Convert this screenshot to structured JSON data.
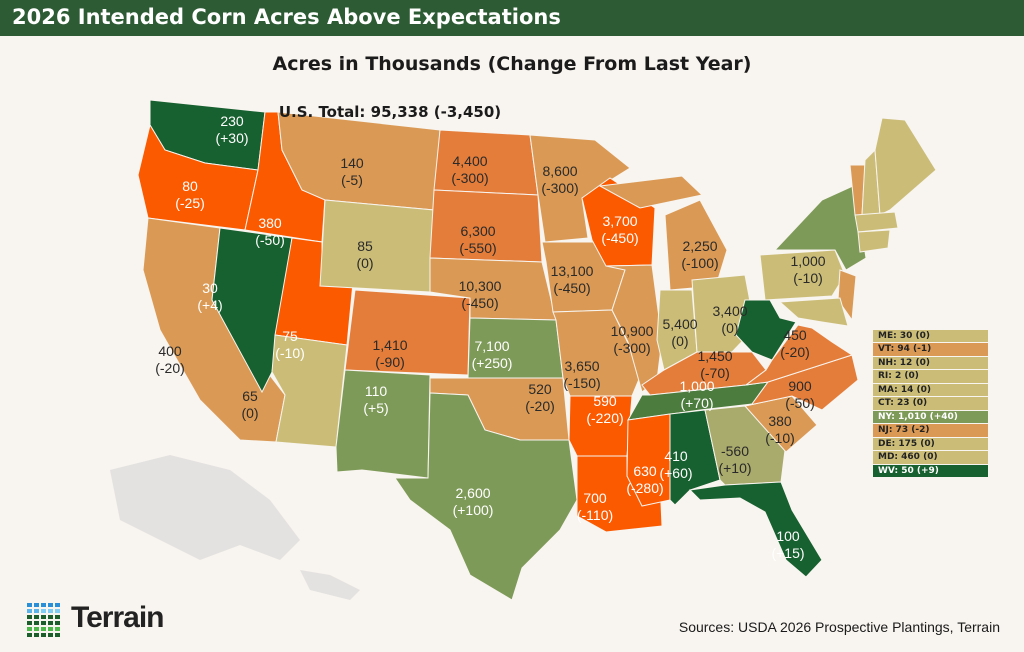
{
  "header": {
    "title": "2026 Intended Corn Acres Above Expectations"
  },
  "subtitle": "Acres in Thousands (Change From Last Year)",
  "total": "U.S. Total: 95,338 (-3,450)",
  "colors": {
    "title_bar": "#2d5b34",
    "dark_green": "#17602f",
    "medium_green": "#4c7d3e",
    "green": "#7e9a58",
    "olive": "#a9ab6c",
    "tan": "#cbbd78",
    "light_orange": "#da9a55",
    "orange": "#e57d3a",
    "red_orange": "#fb5a00",
    "background": "#f8f4ef"
  },
  "states": [
    {
      "id": "WA",
      "value": "230",
      "change": "(+30)",
      "color": "dark_green"
    },
    {
      "id": "OR",
      "value": "80",
      "change": "(-25)",
      "color": "red_orange"
    },
    {
      "id": "ID",
      "value": "380",
      "change": "(-50)",
      "color": "red_orange"
    },
    {
      "id": "MT",
      "value": "140",
      "change": "(-5)",
      "color": "light_orange"
    },
    {
      "id": "ND",
      "value": "4,400",
      "change": "(-300)",
      "color": "orange"
    },
    {
      "id": "SD",
      "value": "6,300",
      "change": "(-550)",
      "color": "orange"
    },
    {
      "id": "MN",
      "value": "8,600",
      "change": "(-300)",
      "color": "light_orange"
    },
    {
      "id": "WI",
      "value": "3,700",
      "change": "(-450)",
      "color": "red_orange"
    },
    {
      "id": "MI",
      "value": "2,250",
      "change": "(-100)",
      "color": "light_orange"
    },
    {
      "id": "WY",
      "value": "85",
      "change": "(0)",
      "color": "tan"
    },
    {
      "id": "NV",
      "value": "30",
      "change": "(+4)",
      "color": "dark_green"
    },
    {
      "id": "UT",
      "value": "75",
      "change": "(-10)",
      "color": "red_orange"
    },
    {
      "id": "CA",
      "value": "400",
      "change": "(-20)",
      "color": "light_orange"
    },
    {
      "id": "CO",
      "value": "1,410",
      "change": "(-90)",
      "color": "orange"
    },
    {
      "id": "NE",
      "value": "10,300",
      "change": "(-450)",
      "color": "light_orange"
    },
    {
      "id": "IA",
      "value": "13,100",
      "change": "(-450)",
      "color": "light_orange"
    },
    {
      "id": "IL",
      "value": "10,900",
      "change": "(-300)",
      "color": "light_orange"
    },
    {
      "id": "IN",
      "value": "5,400",
      "change": "(0)",
      "color": "tan"
    },
    {
      "id": "OH",
      "value": "3,400",
      "change": "(0)",
      "color": "tan"
    },
    {
      "id": "PA",
      "value": "1,000",
      "change": "(-10)",
      "color": "tan"
    },
    {
      "id": "KS",
      "value": "7,100",
      "change": "(+250)",
      "color": "green"
    },
    {
      "id": "MO",
      "value": "3,650",
      "change": "(-150)",
      "color": "light_orange"
    },
    {
      "id": "KY",
      "value": "1,450",
      "change": "(-70)",
      "color": "orange"
    },
    {
      "id": "VA",
      "value": "450",
      "change": "(-20)",
      "color": "orange"
    },
    {
      "id": "AZ",
      "value": "65",
      "change": "(0)",
      "color": "tan"
    },
    {
      "id": "NM",
      "value": "110",
      "change": "(+5)",
      "color": "green"
    },
    {
      "id": "OK",
      "value": "520",
      "change": "(-20)",
      "color": "light_orange"
    },
    {
      "id": "AR",
      "value": "590",
      "change": "(-220)",
      "color": "red_orange"
    },
    {
      "id": "TN",
      "value": "1,000",
      "change": "(+70)",
      "color": "medium_green"
    },
    {
      "id": "NC",
      "value": "900",
      "change": "(-50)",
      "color": "orange"
    },
    {
      "id": "SC",
      "value": "380",
      "change": "(-10)",
      "color": "light_orange"
    },
    {
      "id": "GA",
      "value": "-560",
      "change": "(+10)",
      "color": "olive"
    },
    {
      "id": "AL",
      "value": "410",
      "change": "(+60)",
      "color": "dark_green"
    },
    {
      "id": "MS",
      "value": "630",
      "change": "(-280)",
      "color": "red_orange"
    },
    {
      "id": "LA",
      "value": "700",
      "change": "(-110)",
      "color": "red_orange"
    },
    {
      "id": "TX",
      "value": "2,600",
      "change": "(+100)",
      "color": "green"
    },
    {
      "id": "FL",
      "value": "100",
      "change": "(+15)",
      "color": "dark_green"
    }
  ],
  "legend": [
    {
      "text": "ME: 30 (0)",
      "color": "tan"
    },
    {
      "text": "VT: 94 (-1)",
      "color": "light_orange"
    },
    {
      "text": "NH: 12 (0)",
      "color": "tan"
    },
    {
      "text": "RI: 2 (0)",
      "color": "tan"
    },
    {
      "text": "MA: 14 (0)",
      "color": "tan"
    },
    {
      "text": "CT: 23 (0)",
      "color": "tan"
    },
    {
      "text": "NY: 1,010 (+40)",
      "color": "green"
    },
    {
      "text": "NJ: 73 (-2)",
      "color": "light_orange"
    },
    {
      "text": "DE: 175 (0)",
      "color": "tan"
    },
    {
      "text": "MD: 460 (0)",
      "color": "tan"
    },
    {
      "text": "WV: 50 (+9)",
      "color": "dark_green"
    }
  ],
  "small_states": [
    {
      "id": "NY",
      "color": "green"
    },
    {
      "id": "NJ",
      "color": "light_orange"
    },
    {
      "id": "MD",
      "color": "tan"
    },
    {
      "id": "WV",
      "color": "dark_green"
    },
    {
      "id": "VT",
      "color": "light_orange"
    },
    {
      "id": "NH",
      "color": "tan"
    },
    {
      "id": "ME",
      "color": "tan"
    },
    {
      "id": "MA",
      "color": "tan"
    },
    {
      "id": "CT",
      "color": "tan"
    }
  ],
  "logo": {
    "text": "Terrain"
  },
  "sources": "Sources: USDA 2026 Prospective Plantings, Terrain"
}
